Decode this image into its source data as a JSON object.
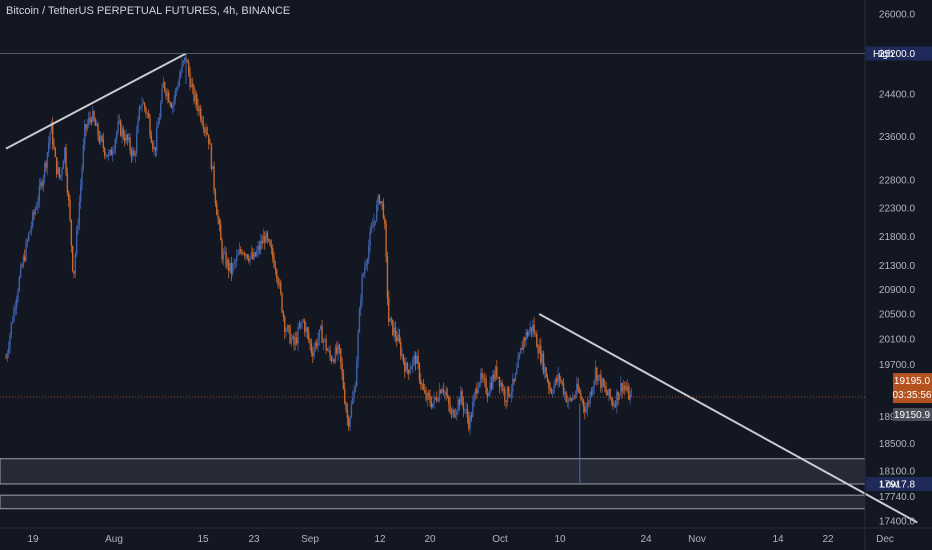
{
  "header": {
    "title": "Bitcoin / TetherUS PERPETUAL FUTURES, 4h, BINANCE"
  },
  "colors": {
    "background": "#131722",
    "up": "#3f5fa8",
    "down": "#c8672e",
    "trendline": "#c9cbd1",
    "zone_fill": "#2a2e39",
    "zone_border": "#c9cbd1",
    "high_low_tag": "#1e2a5a",
    "price_tag": "#b4521f",
    "prev_tag": "#4a4e59"
  },
  "chart_data": {
    "type": "candlestick",
    "title": "Bitcoin / TetherUS PERPETUAL FUTURES, 4h, BINANCE",
    "y_scale": "log",
    "y_ticks": [
      26000,
      25200,
      24400,
      23600,
      22800,
      22300,
      21800,
      21300,
      20900,
      20500,
      20100,
      19700,
      18900,
      18500,
      18100,
      17740,
      17400
    ],
    "y_tick_labels": [
      "26000.0",
      "25200.0",
      "24400.0",
      "23600.0",
      "22800.0",
      "22300.0",
      "21800.0",
      "21300.0",
      "20900.0",
      "20500.0",
      "20100.0",
      "19700.0",
      "18900.0",
      "18500.0",
      "18100.0",
      "17740.0",
      "17400.0"
    ],
    "x_ticks": [
      "19",
      "Aug",
      "15",
      "23",
      "Sep",
      "12",
      "20",
      "Oct",
      "10",
      "24",
      "Nov",
      "14",
      "22",
      "Dec"
    ],
    "price_series": [
      {
        "t": 0,
        "p": 19800
      },
      {
        "t": 0.05,
        "p": 20900
      },
      {
        "t": 0.1,
        "p": 21800
      },
      {
        "t": 0.15,
        "p": 22600
      },
      {
        "t": 0.18,
        "p": 23200
      },
      {
        "t": 0.2,
        "p": 23800
      },
      {
        "t": 0.22,
        "p": 23100
      },
      {
        "t": 0.24,
        "p": 22800
      },
      {
        "t": 0.26,
        "p": 23400
      },
      {
        "t": 0.28,
        "p": 22300
      },
      {
        "t": 0.3,
        "p": 21100
      },
      {
        "t": 0.33,
        "p": 22600
      },
      {
        "t": 0.35,
        "p": 23700
      },
      {
        "t": 0.38,
        "p": 24000
      },
      {
        "t": 0.42,
        "p": 23500
      },
      {
        "t": 0.46,
        "p": 23200
      },
      {
        "t": 0.5,
        "p": 23800
      },
      {
        "t": 0.54,
        "p": 23500
      },
      {
        "t": 0.57,
        "p": 23200
      },
      {
        "t": 0.6,
        "p": 24300
      },
      {
        "t": 0.63,
        "p": 24000
      },
      {
        "t": 0.66,
        "p": 23300
      },
      {
        "t": 0.7,
        "p": 24600
      },
      {
        "t": 0.74,
        "p": 24200
      },
      {
        "t": 0.78,
        "p": 24900
      },
      {
        "t": 0.8,
        "p": 25100
      },
      {
        "t": 0.83,
        "p": 24400
      },
      {
        "t": 0.86,
        "p": 24100
      },
      {
        "t": 0.9,
        "p": 23600
      },
      {
        "t": 0.93,
        "p": 22500
      },
      {
        "t": 0.96,
        "p": 21500
      },
      {
        "t": 1.0,
        "p": 21200
      },
      {
        "t": 1.05,
        "p": 21600
      },
      {
        "t": 1.1,
        "p": 21400
      },
      {
        "t": 1.15,
        "p": 21800
      },
      {
        "t": 1.2,
        "p": 21300
      },
      {
        "t": 1.24,
        "p": 20300
      },
      {
        "t": 1.28,
        "p": 20000
      },
      {
        "t": 1.32,
        "p": 20400
      },
      {
        "t": 1.36,
        "p": 19900
      },
      {
        "t": 1.4,
        "p": 20200
      },
      {
        "t": 1.44,
        "p": 19800
      },
      {
        "t": 1.48,
        "p": 19900
      },
      {
        "t": 1.52,
        "p": 18800
      },
      {
        "t": 1.55,
        "p": 19300
      },
      {
        "t": 1.58,
        "p": 21000
      },
      {
        "t": 1.62,
        "p": 21800
      },
      {
        "t": 1.66,
        "p": 22500
      },
      {
        "t": 1.68,
        "p": 22200
      },
      {
        "t": 1.7,
        "p": 20400
      },
      {
        "t": 1.74,
        "p": 20100
      },
      {
        "t": 1.78,
        "p": 19600
      },
      {
        "t": 1.82,
        "p": 19800
      },
      {
        "t": 1.86,
        "p": 19200
      },
      {
        "t": 1.9,
        "p": 19100
      },
      {
        "t": 1.94,
        "p": 19400
      },
      {
        "t": 1.98,
        "p": 18900
      },
      {
        "t": 2.02,
        "p": 19200
      },
      {
        "t": 2.06,
        "p": 18800
      },
      {
        "t": 2.1,
        "p": 19500
      },
      {
        "t": 2.14,
        "p": 19300
      },
      {
        "t": 2.18,
        "p": 19600
      },
      {
        "t": 2.22,
        "p": 19200
      },
      {
        "t": 2.26,
        "p": 19400
      },
      {
        "t": 2.3,
        "p": 20100
      },
      {
        "t": 2.34,
        "p": 20300
      },
      {
        "t": 2.38,
        "p": 19800
      },
      {
        "t": 2.42,
        "p": 19300
      },
      {
        "t": 2.46,
        "p": 19500
      },
      {
        "t": 2.5,
        "p": 19100
      },
      {
        "t": 2.54,
        "p": 19300
      },
      {
        "t": 2.58,
        "p": 19000
      },
      {
        "t": 2.62,
        "p": 19600
      },
      {
        "t": 2.66,
        "p": 19300
      },
      {
        "t": 2.7,
        "p": 19100
      },
      {
        "t": 2.74,
        "p": 19400
      },
      {
        "t": 2.78,
        "p": 19150
      }
    ],
    "high_marker": {
      "label": "High",
      "value": "25200.0"
    },
    "low_marker": {
      "label": "Low",
      "value": "17917.8"
    },
    "last_price": {
      "value": "19195.0",
      "countdown": "03:35:56"
    },
    "prev_close": {
      "value": "19150.9"
    },
    "zones": [
      {
        "from": 17917.8,
        "to": 18280
      },
      {
        "from": 17570,
        "to": 17760
      }
    ],
    "trendlines": [
      {
        "from": {
          "t": 0.0,
          "p": 23370
        },
        "to": {
          "t": 0.8,
          "p": 25200
        }
      },
      {
        "from": {
          "t": 2.37,
          "p": 20500
        },
        "to": {
          "t": 4.05,
          "p": 17380
        }
      }
    ]
  }
}
